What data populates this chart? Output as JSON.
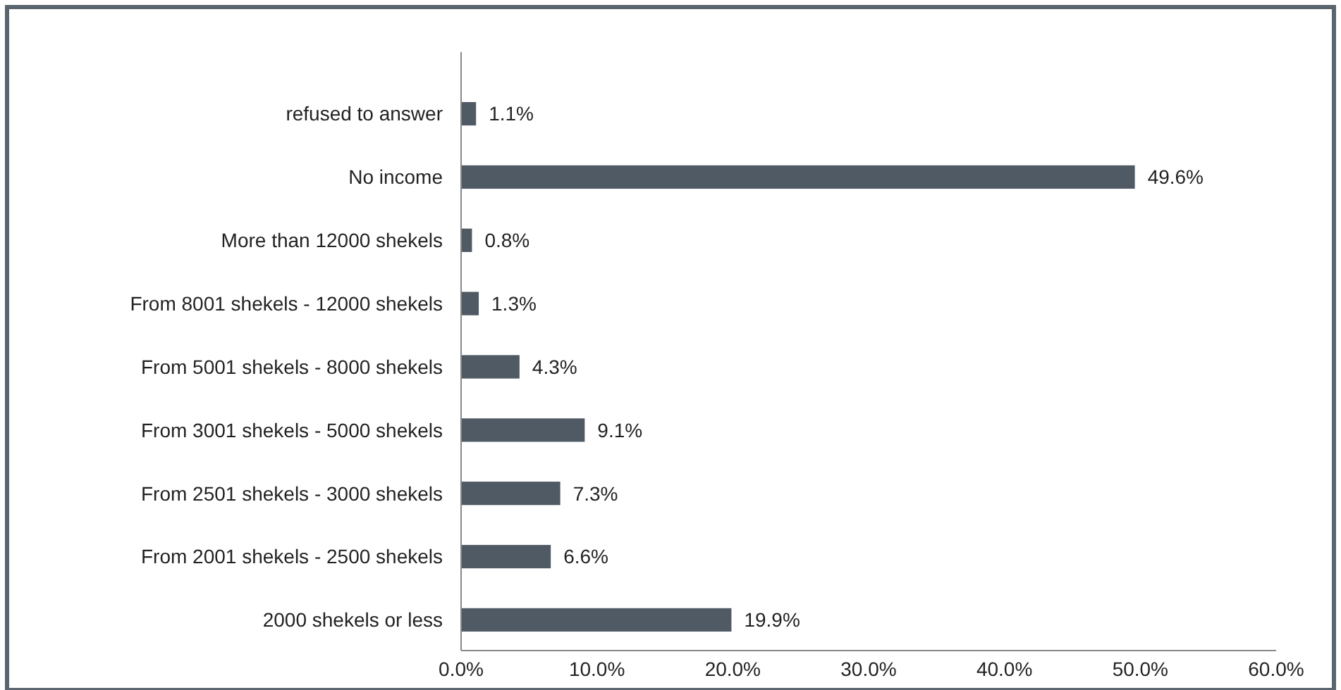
{
  "chart_data": {
    "type": "bar",
    "orientation": "horizontal",
    "categories": [
      "refused to answer",
      "No income",
      "More than 12000 shekels",
      "From 8001 shekels - 12000 shekels",
      "From 5001 shekels - 8000 shekels",
      "From 3001 shekels - 5000 shekels",
      "From 2501 shekels - 3000 shekels",
      "From 2001 shekels - 2500 shekels",
      "2000 shekels or less"
    ],
    "values": [
      1.1,
      49.6,
      0.8,
      1.3,
      4.3,
      9.1,
      7.3,
      6.6,
      19.9
    ],
    "value_labels": [
      "1.1%",
      "49.6%",
      "0.8%",
      "1.3%",
      "4.3%",
      "9.1%",
      "7.3%",
      "6.6%",
      "19.9%"
    ],
    "color": "#505a64",
    "xlim": [
      0,
      60
    ],
    "xticks": [
      {
        "value": 0,
        "label": "0.0%"
      },
      {
        "value": 10,
        "label": "10.0%"
      },
      {
        "value": 20,
        "label": "20.0%"
      },
      {
        "value": 30,
        "label": "30.0%"
      },
      {
        "value": 40,
        "label": "40.0%"
      },
      {
        "value": 50,
        "label": "50.0%"
      },
      {
        "value": 60,
        "label": "60.0%"
      }
    ],
    "grid": false
  }
}
